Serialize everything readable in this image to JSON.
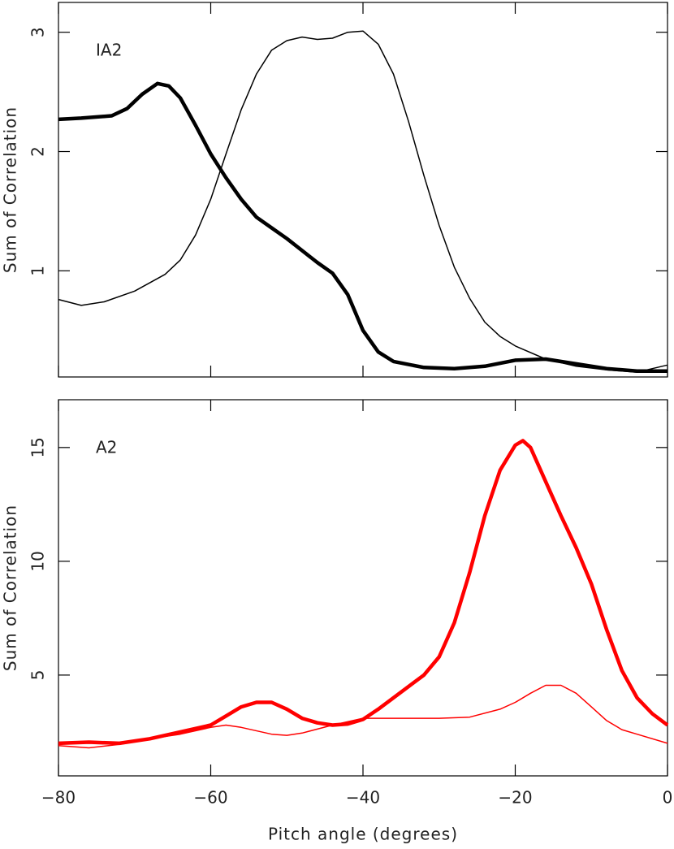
{
  "chart_data": [
    {
      "type": "line",
      "annotation": "IA2",
      "ylabel": "Sum of Correlation",
      "xlim": [
        -80,
        0
      ],
      "ylim": [
        0.11,
        3.25
      ],
      "xticks": [
        -80,
        -60,
        -40,
        -20,
        0
      ],
      "xtick_labels": false,
      "yticks": [
        1,
        2,
        3
      ],
      "series": [
        {
          "color": "#000000",
          "line_width": 4.5,
          "x": [
            -80,
            -77,
            -73,
            -71,
            -69,
            -67,
            -65.5,
            -64,
            -62,
            -60,
            -58,
            -56,
            -54,
            -52,
            -50,
            -48,
            -46,
            -44,
            -42,
            -40,
            -38,
            -36,
            -32,
            -28,
            -24,
            -20,
            -16,
            -12,
            -8,
            -4,
            0
          ],
          "values": [
            2.27,
            2.28,
            2.3,
            2.36,
            2.48,
            2.57,
            2.55,
            2.45,
            2.22,
            1.98,
            1.78,
            1.6,
            1.45,
            1.36,
            1.27,
            1.17,
            1.07,
            0.98,
            0.8,
            0.5,
            0.32,
            0.24,
            0.19,
            0.18,
            0.2,
            0.25,
            0.26,
            0.22,
            0.18,
            0.16,
            0.16
          ]
        },
        {
          "color": "#000000",
          "line_width": 1.5,
          "x": [
            -80,
            -77,
            -74,
            -70,
            -66,
            -64,
            -62,
            -60,
            -58,
            -56,
            -54,
            -52,
            -50,
            -48,
            -46,
            -44,
            -42,
            -40,
            -38,
            -36,
            -34,
            -32,
            -30,
            -28,
            -26,
            -24,
            -22,
            -20,
            -16,
            -12,
            -8,
            -4,
            -2,
            0
          ],
          "values": [
            0.76,
            0.71,
            0.74,
            0.83,
            0.97,
            1.09,
            1.3,
            1.6,
            1.98,
            2.35,
            2.65,
            2.85,
            2.93,
            2.96,
            2.94,
            2.95,
            3.0,
            3.01,
            2.9,
            2.65,
            2.25,
            1.8,
            1.38,
            1.03,
            0.77,
            0.57,
            0.45,
            0.37,
            0.26,
            0.2,
            0.17,
            0.15,
            0.18,
            0.21
          ]
        }
      ]
    },
    {
      "type": "line",
      "annotation": "A2",
      "ylabel": "Sum of Correlation",
      "xlabel": "Pitch angle (degrees)",
      "xlim": [
        -80,
        0
      ],
      "ylim": [
        0.57,
        17.1
      ],
      "xticks": [
        {
          "value": -80,
          "label": "−80"
        },
        {
          "value": -60,
          "label": "−60"
        },
        {
          "value": -40,
          "label": "−40"
        },
        {
          "value": -20,
          "label": "−20"
        },
        0
      ],
      "xtick_labels": true,
      "yticks": [
        5,
        10,
        15
      ],
      "series": [
        {
          "color": "#ff0000",
          "line_width": 4.5,
          "x": [
            -80,
            -76,
            -72,
            -68,
            -64,
            -60,
            -58,
            -56,
            -54,
            -52,
            -50,
            -48,
            -46,
            -44,
            -42,
            -40,
            -38,
            -36,
            -34,
            -32,
            -30,
            -28,
            -26,
            -24,
            -22,
            -20,
            -19,
            -18,
            -16,
            -14,
            -12,
            -10,
            -8,
            -6,
            -4,
            -2,
            0
          ],
          "values": [
            2.0,
            2.05,
            2.0,
            2.2,
            2.5,
            2.8,
            3.2,
            3.6,
            3.8,
            3.8,
            3.5,
            3.1,
            2.9,
            2.8,
            2.85,
            3.05,
            3.5,
            4.0,
            4.5,
            5.0,
            5.8,
            7.3,
            9.5,
            12.0,
            14.0,
            15.1,
            15.3,
            15.0,
            13.5,
            12.0,
            10.6,
            9.0,
            7.0,
            5.2,
            4.0,
            3.3,
            2.8
          ]
        },
        {
          "color": "#ff0000",
          "line_width": 1.5,
          "x": [
            -80,
            -76,
            -72,
            -68,
            -64,
            -60,
            -58,
            -56,
            -52,
            -50,
            -48,
            -44,
            -40,
            -36,
            -30,
            -26,
            -22,
            -20,
            -18,
            -16,
            -14,
            -12,
            -10,
            -8,
            -6,
            -4,
            0
          ],
          "values": [
            1.9,
            1.8,
            1.95,
            2.2,
            2.4,
            2.7,
            2.8,
            2.7,
            2.4,
            2.35,
            2.45,
            2.8,
            3.1,
            3.1,
            3.1,
            3.15,
            3.5,
            3.8,
            4.2,
            4.55,
            4.55,
            4.2,
            3.6,
            3.0,
            2.6,
            2.4,
            2.0
          ]
        }
      ]
    }
  ]
}
